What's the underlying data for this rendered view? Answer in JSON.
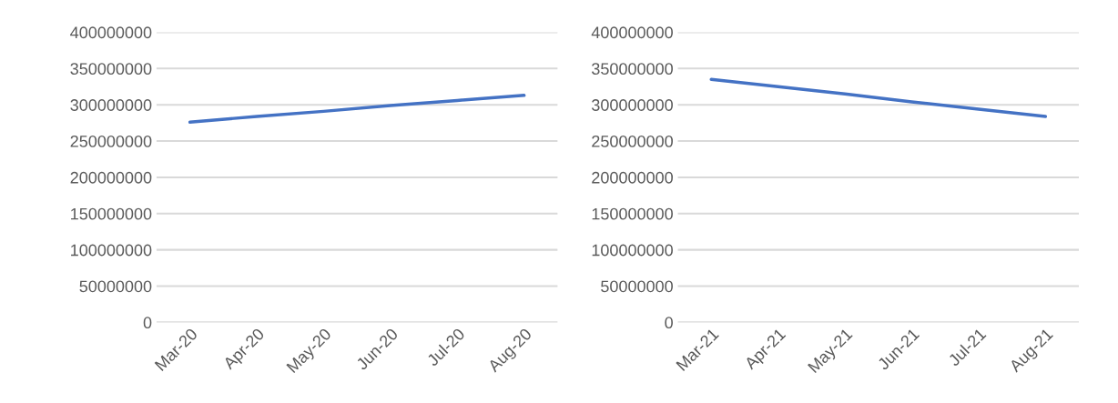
{
  "chart_data": [
    {
      "type": "line",
      "categories": [
        "Mar-20",
        "Apr-20",
        "May-20",
        "Jun-20",
        "Jul-20",
        "Aug-20"
      ],
      "series": [
        {
          "color": "#4472c4",
          "values": [
            276000000,
            284000000,
            291000000,
            299000000,
            306000000,
            313000000
          ]
        }
      ],
      "ylim": [
        0,
        400000000
      ],
      "yticks": [
        0,
        50000000,
        100000000,
        150000000,
        200000000,
        250000000,
        300000000,
        350000000,
        400000000
      ],
      "grid": "y",
      "legend": false
    },
    {
      "type": "line",
      "categories": [
        "Mar-21",
        "Apr-21",
        "May-21",
        "Jun-21",
        "Jul-21",
        "Aug-21"
      ],
      "series": [
        {
          "color": "#4472c4",
          "values": [
            335000000,
            325000000,
            315000000,
            304000000,
            294000000,
            284000000
          ]
        }
      ],
      "ylim": [
        0,
        400000000
      ],
      "yticks": [
        0,
        50000000,
        100000000,
        150000000,
        200000000,
        250000000,
        300000000,
        350000000,
        400000000
      ],
      "grid": "y",
      "legend": false
    }
  ]
}
